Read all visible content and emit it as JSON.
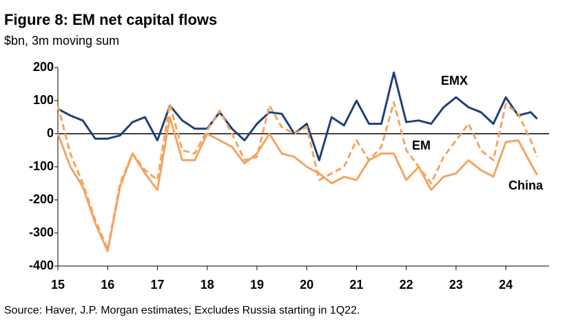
{
  "chart_data": {
    "type": "line",
    "title": "Figure 8: EM net capital flows",
    "subtitle": "$bn, 3m moving sum",
    "source": "Source: Haver, J.P. Morgan estimates; Excludes Russia starting in 1Q22.",
    "x": [
      15,
      15.25,
      15.5,
      15.75,
      16,
      16.25,
      16.5,
      16.75,
      17,
      17.25,
      17.5,
      17.75,
      18,
      18.25,
      18.5,
      18.75,
      19,
      19.25,
      19.5,
      19.75,
      20,
      20.25,
      20.5,
      20.75,
      21,
      21.25,
      21.5,
      21.75,
      22,
      22.25,
      22.5,
      22.75,
      23,
      23.25,
      23.5,
      23.75,
      24,
      24.25,
      24.5,
      24.63
    ],
    "series": [
      {
        "name": "EMX",
        "color": "#1f3f77",
        "style": "solid",
        "values": [
          75,
          55,
          40,
          -15,
          -15,
          -5,
          35,
          50,
          -20,
          85,
          40,
          15,
          15,
          65,
          15,
          -20,
          30,
          65,
          60,
          0,
          30,
          -80,
          50,
          25,
          100,
          30,
          30,
          185,
          35,
          40,
          30,
          80,
          110,
          80,
          65,
          30,
          110,
          55,
          65,
          45
        ]
      },
      {
        "name": "EM",
        "color": "#f4a460",
        "style": "dashed",
        "values": [
          85,
          -60,
          -150,
          -260,
          -350,
          -150,
          -60,
          -110,
          -140,
          90,
          -50,
          -60,
          10,
          70,
          0,
          -80,
          -70,
          85,
          20,
          0,
          20,
          -140,
          -120,
          -100,
          -20,
          -80,
          -40,
          95,
          -50,
          -100,
          -150,
          -70,
          -20,
          30,
          -50,
          -80,
          90,
          60,
          -20,
          -70
        ]
      },
      {
        "name": "China",
        "color": "#f4a460",
        "style": "solid",
        "values": [
          0,
          -100,
          -160,
          -270,
          -355,
          -160,
          -60,
          -120,
          -170,
          50,
          -80,
          -80,
          0,
          -20,
          -40,
          -90,
          -60,
          0,
          -60,
          -70,
          -100,
          -120,
          -150,
          -130,
          -140,
          -80,
          -60,
          -60,
          -140,
          -100,
          -170,
          -130,
          -120,
          -80,
          -110,
          -130,
          -25,
          -20,
          -90,
          -125
        ]
      }
    ],
    "xlim": [
      15,
      24.87
    ],
    "xticks": [
      15,
      16,
      17,
      18,
      19,
      20,
      21,
      22,
      23,
      24
    ],
    "ylim": [
      -400,
      200
    ],
    "yticks": [
      200,
      100,
      0,
      -100,
      -200,
      -300,
      -400
    ]
  }
}
